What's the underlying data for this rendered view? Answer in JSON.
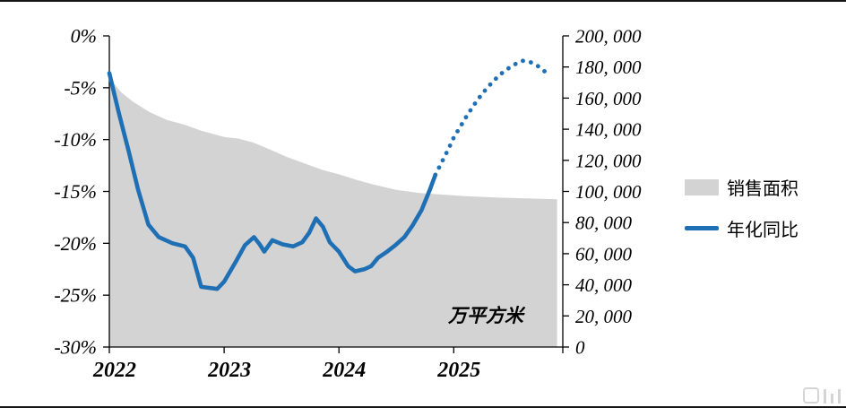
{
  "chart_data": {
    "type": "combo",
    "title": "",
    "x_domain": [
      2022,
      2025.95
    ],
    "x_ticks": [
      {
        "label": "2022",
        "year": 2022
      },
      {
        "label": "2023",
        "year": 2023
      },
      {
        "label": "2024",
        "year": 2024
      },
      {
        "label": "2025",
        "year": 2025
      }
    ],
    "left_axis": {
      "min": -30,
      "max": 0,
      "ticks": [
        "0%",
        "-5%",
        "-10%",
        "-15%",
        "-20%",
        "-25%",
        "-30%"
      ]
    },
    "right_axis": {
      "min": 0,
      "max": 200000,
      "ticks": [
        "200, 000",
        "180, 000",
        "160, 000",
        "140, 000",
        "120, 000",
        "100, 000",
        "80, 000",
        "60, 000",
        "40, 000",
        "20, 000",
        "0"
      ]
    },
    "unit_label": "万平方米",
    "legend_position": "right",
    "grid": false,
    "series": [
      {
        "name": "销售面积",
        "type": "area",
        "axis": "right",
        "color": "#d3d3d3",
        "x": [
          2022.0,
          2022.1,
          2022.2,
          2022.35,
          2022.5,
          2022.65,
          2022.8,
          2023.0,
          2023.12,
          2023.25,
          2023.4,
          2023.55,
          2023.7,
          2023.85,
          2024.0,
          2024.15,
          2024.3,
          2024.5,
          2024.7,
          2024.9,
          2025.1,
          2025.4,
          2025.9
        ],
        "values": [
          173000,
          164000,
          158000,
          151000,
          146000,
          143000,
          139000,
          135000,
          134000,
          131500,
          127000,
          122000,
          118000,
          114000,
          111000,
          107500,
          104500,
          101000,
          99000,
          98000,
          97000,
          96000,
          95000
        ]
      },
      {
        "name": "年化同比",
        "type": "line",
        "axis": "left",
        "color": "#1f6fb5",
        "solid_until": 2024.84,
        "x": [
          2022.0,
          2022.08,
          2022.17,
          2022.25,
          2022.34,
          2022.43,
          2022.55,
          2022.66,
          2022.73,
          2022.8,
          2022.94,
          2023.0,
          2023.1,
          2023.18,
          2023.26,
          2023.31,
          2023.35,
          2023.42,
          2023.51,
          2023.6,
          2023.68,
          2023.74,
          2023.8,
          2023.86,
          2023.92,
          2024.0,
          2024.08,
          2024.14,
          2024.22,
          2024.28,
          2024.34,
          2024.42,
          2024.49,
          2024.57,
          2024.64,
          2024.72,
          2024.79,
          2024.84,
          2024.89,
          2024.95,
          2025.0,
          2025.06,
          2025.12,
          2025.18,
          2025.24,
          2025.3,
          2025.36,
          2025.42,
          2025.48,
          2025.54,
          2025.6,
          2025.66,
          2025.72,
          2025.78,
          2025.83
        ],
        "values": [
          -3.6,
          -7.3,
          -11.2,
          -14.8,
          -18.2,
          -19.4,
          -20.0,
          -20.3,
          -21.4,
          -24.2,
          -24.4,
          -23.7,
          -21.8,
          -20.2,
          -19.4,
          -20.1,
          -20.8,
          -19.7,
          -20.1,
          -20.3,
          -19.9,
          -19.0,
          -17.6,
          -18.4,
          -19.9,
          -20.8,
          -22.2,
          -22.7,
          -22.5,
          -22.2,
          -21.4,
          -20.8,
          -20.2,
          -19.4,
          -18.3,
          -16.8,
          -14.9,
          -13.4,
          -12.3,
          -11.0,
          -9.8,
          -8.7,
          -7.6,
          -6.6,
          -5.7,
          -4.9,
          -4.2,
          -3.6,
          -3.1,
          -2.7,
          -2.4,
          -2.5,
          -2.8,
          -3.3,
          -3.8
        ]
      }
    ]
  }
}
